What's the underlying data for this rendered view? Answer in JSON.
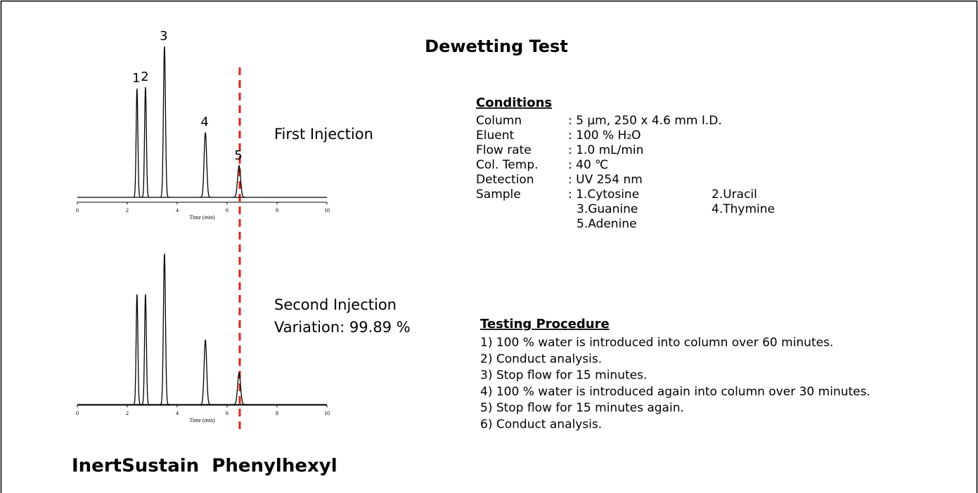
{
  "title": "Dewetting Test",
  "chromatograms": [
    {
      "xlim": [
        0,
        10
      ],
      "xticks": [
        0,
        2,
        4,
        6,
        8,
        10
      ],
      "xlabel": "Time (min)",
      "caption": [
        "First Injection"
      ],
      "peaks": [
        {
          "label": "1",
          "time": 2.39,
          "height": 72
        },
        {
          "label": "2",
          "time": 2.73,
          "height": 73
        },
        {
          "label": "3",
          "time": 3.49,
          "height": 100
        },
        {
          "label": "4",
          "time": 5.13,
          "height": 43
        },
        {
          "label": "5",
          "time": 6.48,
          "height": 21
        }
      ]
    },
    {
      "xlim": [
        0,
        10
      ],
      "xticks": [
        0,
        2,
        4,
        6,
        8,
        10
      ],
      "xlabel": "Time (min)",
      "caption": [
        "Second Injection",
        "Variation: 99.89 %"
      ],
      "peaks": [
        {
          "label": null,
          "time": 2.39,
          "height": 73
        },
        {
          "label": null,
          "time": 2.73,
          "height": 73
        },
        {
          "label": null,
          "time": 3.49,
          "height": 100
        },
        {
          "label": null,
          "time": 5.13,
          "height": 43
        },
        {
          "label": null,
          "time": 6.48,
          "height": 21
        }
      ]
    }
  ],
  "column_name": "InertSustain  Phenylhexyl",
  "conditions": {
    "heading": "Conditions",
    "rows": [
      [
        "Column",
        ": 5 µm, 250 x 4.6 mm I.D."
      ],
      [
        "Eluent",
        ": 100 % H₂O"
      ],
      [
        "Flow rate",
        ": 1.0 mL/min"
      ],
      [
        "Col. Temp.",
        ": 40 ℃"
      ],
      [
        "Detection",
        ": UV 254 nm"
      ],
      [
        "Sample",
        ": 1.Cytosine",
        "2.Uracil"
      ],
      [
        null,
        "3.Guanine",
        "4.Thymine"
      ],
      [
        null,
        "5.Adenine"
      ]
    ]
  },
  "procedure": {
    "heading": "Testing Procedure",
    "steps": [
      "1) 100 % water is introduced into column over 60 minutes.",
      "2) Conduct analysis.",
      "3) Stop flow for 15 minutes.",
      "4) 100 % water is introduced again into column over 30 minutes.",
      "5) Stop flow for 15 minutes again.",
      "6) Conduct analysis."
    ]
  }
}
